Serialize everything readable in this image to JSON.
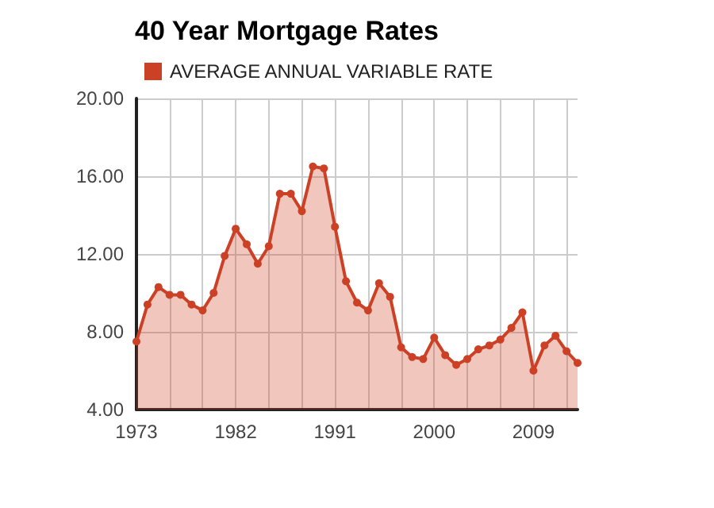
{
  "chart_data": {
    "type": "area",
    "title": "40 Year Mortgage Rates",
    "x": [
      1973,
      1974,
      1975,
      1976,
      1977,
      1978,
      1979,
      1980,
      1981,
      1982,
      1983,
      1984,
      1985,
      1986,
      1987,
      1988,
      1989,
      1990,
      1991,
      1992,
      1993,
      1994,
      1995,
      1996,
      1997,
      1998,
      1999,
      2000,
      2001,
      2002,
      2003,
      2004,
      2005,
      2006,
      2007,
      2008,
      2009,
      2010,
      2011,
      2012,
      2013
    ],
    "series": [
      {
        "name": "AVERAGE ANNUAL VARIABLE RATE",
        "color": "#cc4125",
        "values": [
          7.5,
          9.4,
          10.3,
          9.9,
          9.9,
          9.4,
          9.1,
          10.0,
          11.9,
          13.3,
          12.5,
          11.5,
          12.4,
          15.1,
          15.1,
          14.2,
          16.5,
          16.4,
          13.4,
          10.6,
          9.5,
          9.1,
          10.5,
          9.8,
          7.2,
          6.7,
          6.6,
          7.7,
          6.8,
          6.3,
          6.6,
          7.1,
          7.3,
          7.6,
          8.2,
          9.0,
          6.0,
          7.3,
          7.8,
          7.0,
          6.4
        ]
      }
    ],
    "xlim": [
      1973,
      2013
    ],
    "xticks": [
      1973,
      {
        "value": 1976,
        "label": null
      },
      {
        "value": 1979,
        "label": null
      },
      1982,
      {
        "value": 1985,
        "label": null
      },
      {
        "value": 1988,
        "label": null
      },
      1991,
      {
        "value": 1994,
        "label": null
      },
      {
        "value": 1997,
        "label": null
      },
      2000,
      {
        "value": 2003,
        "label": null
      },
      {
        "value": 2006,
        "label": null
      },
      2009,
      {
        "value": 2012,
        "label": null
      }
    ],
    "ylim": [
      4,
      20
    ],
    "yticks": [
      {
        "value": 4,
        "label": "4.00"
      },
      {
        "value": 8,
        "label": "8.00"
      },
      {
        "value": 12,
        "label": "12.00"
      },
      {
        "value": 16,
        "label": "16.00"
      },
      {
        "value": 20,
        "label": "20.00"
      }
    ],
    "grid": true,
    "legend": "top left",
    "marker": "circle"
  }
}
